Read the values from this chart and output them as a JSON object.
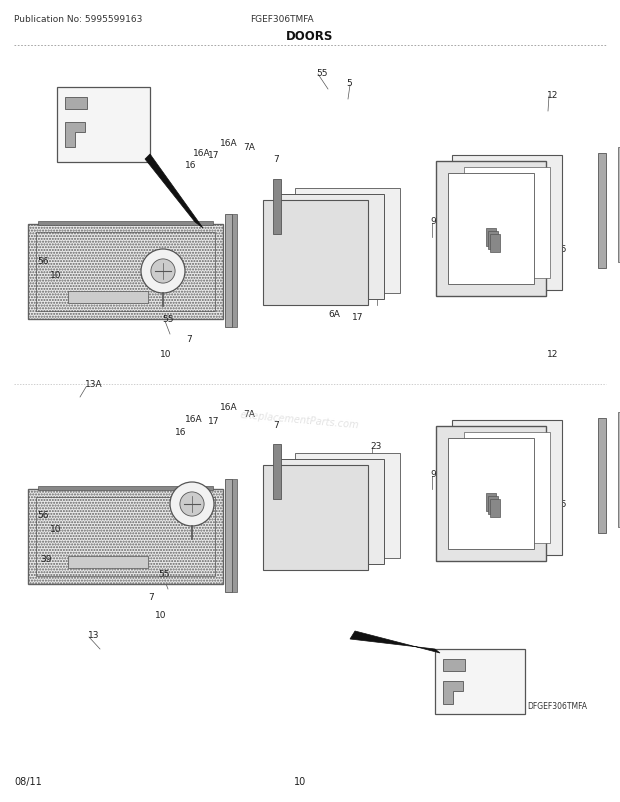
{
  "title": "DOORS",
  "pub_no": "Publication No: 5995599163",
  "model": "FGEF306TMFA",
  "footer_left": "08/11",
  "footer_center": "10",
  "callout_label": "DFGEF306TMFA",
  "watermark": "eReplacementParts.com",
  "bg": "#ffffff",
  "fg": "#333333",
  "gray1": "#bbbbbb",
  "gray2": "#999999",
  "gray3": "#dddddd",
  "gray4": "#cccccc",
  "darkgray": "#555555",
  "black": "#111111"
}
